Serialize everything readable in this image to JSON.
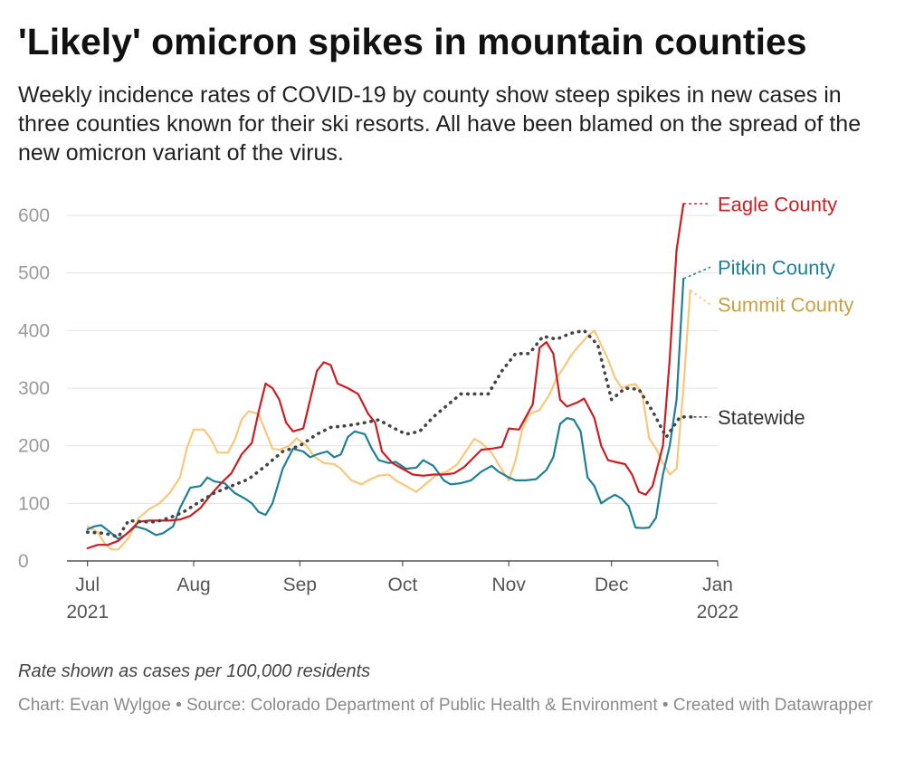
{
  "title": "'Likely' omicron spikes in mountain counties",
  "subtitle": "Weekly incidence rates of COVID-19 by county show steep spikes in new cases in three counties known for their ski resorts. All have been blamed on the spread of the new omicron variant of the virus.",
  "notes": "Rate shown as cases per 100,000 residents",
  "byline": "Chart: Evan Wylgoe • Source: Colorado Department of Public Health & Environment • Created with Datawrapper",
  "chart_data": {
    "type": "line",
    "title": "",
    "xlabel": "",
    "ylabel": "",
    "x_axis": {
      "min": "2021-06-25",
      "max": "2022-01-01",
      "ticks": [
        {
          "date": "2021-07-01",
          "label": "Jul",
          "year": "2021"
        },
        {
          "date": "2021-08-01",
          "label": "Aug",
          "year": ""
        },
        {
          "date": "2021-09-01",
          "label": "Sep",
          "year": ""
        },
        {
          "date": "2021-10-01",
          "label": "Oct",
          "year": ""
        },
        {
          "date": "2021-11-01",
          "label": "Nov",
          "year": ""
        },
        {
          "date": "2021-12-01",
          "label": "Dec",
          "year": ""
        },
        {
          "date": "2022-01-01",
          "label": "Jan",
          "year": "2022"
        }
      ]
    },
    "y_axis": {
      "min": 0,
      "max": 600,
      "ticks": [
        0,
        100,
        200,
        300,
        400,
        500,
        600
      ]
    },
    "grid": true,
    "series": [
      {
        "name": "Summit County",
        "color": "#f8c77a",
        "label_color": "#c9a044",
        "style": "solid",
        "label_value": 445,
        "points": [
          [
            "2021-07-01",
            60
          ],
          [
            "2021-07-04",
            50
          ],
          [
            "2021-07-06",
            30
          ],
          [
            "2021-07-08",
            20
          ],
          [
            "2021-07-10",
            20
          ],
          [
            "2021-07-13",
            40
          ],
          [
            "2021-07-16",
            75
          ],
          [
            "2021-07-19",
            90
          ],
          [
            "2021-07-22",
            100
          ],
          [
            "2021-07-25",
            118
          ],
          [
            "2021-07-28",
            145
          ],
          [
            "2021-07-30",
            195
          ],
          [
            "2021-08-01",
            228
          ],
          [
            "2021-08-04",
            228
          ],
          [
            "2021-08-06",
            212
          ],
          [
            "2021-08-08",
            188
          ],
          [
            "2021-08-11",
            188
          ],
          [
            "2021-08-13",
            210
          ],
          [
            "2021-08-15",
            245
          ],
          [
            "2021-08-17",
            260
          ],
          [
            "2021-08-20",
            255
          ],
          [
            "2021-08-22",
            225
          ],
          [
            "2021-08-24",
            195
          ],
          [
            "2021-08-26",
            193
          ],
          [
            "2021-08-29",
            200
          ],
          [
            "2021-08-31",
            213
          ],
          [
            "2021-09-03",
            200
          ],
          [
            "2021-09-05",
            182
          ],
          [
            "2021-09-08",
            170
          ],
          [
            "2021-09-11",
            168
          ],
          [
            "2021-09-13",
            160
          ],
          [
            "2021-09-16",
            140
          ],
          [
            "2021-09-19",
            133
          ],
          [
            "2021-09-21",
            140
          ],
          [
            "2021-09-24",
            148
          ],
          [
            "2021-09-27",
            150
          ],
          [
            "2021-09-29",
            140
          ],
          [
            "2021-10-02",
            130
          ],
          [
            "2021-10-05",
            120
          ],
          [
            "2021-10-08",
            135
          ],
          [
            "2021-10-11",
            150
          ],
          [
            "2021-10-14",
            155
          ],
          [
            "2021-10-17",
            168
          ],
          [
            "2021-10-20",
            195
          ],
          [
            "2021-10-22",
            212
          ],
          [
            "2021-10-24",
            205
          ],
          [
            "2021-10-27",
            188
          ],
          [
            "2021-10-29",
            168
          ],
          [
            "2021-11-01",
            140
          ],
          [
            "2021-11-03",
            175
          ],
          [
            "2021-11-05",
            230
          ],
          [
            "2021-11-07",
            255
          ],
          [
            "2021-11-10",
            262
          ],
          [
            "2021-11-13",
            290
          ],
          [
            "2021-11-15",
            318
          ],
          [
            "2021-11-17",
            335
          ],
          [
            "2021-11-19",
            355
          ],
          [
            "2021-11-21",
            370
          ],
          [
            "2021-11-24",
            390
          ],
          [
            "2021-11-26",
            400
          ],
          [
            "2021-11-28",
            375
          ],
          [
            "2021-11-30",
            350
          ],
          [
            "2021-12-02",
            318
          ],
          [
            "2021-12-04",
            300
          ],
          [
            "2021-12-06",
            305
          ],
          [
            "2021-12-08",
            307
          ],
          [
            "2021-12-10",
            290
          ],
          [
            "2021-12-12",
            213
          ],
          [
            "2021-12-14",
            195
          ],
          [
            "2021-12-16",
            170
          ],
          [
            "2021-12-18",
            150
          ],
          [
            "2021-12-20",
            160
          ],
          [
            "2021-12-22",
            300
          ],
          [
            "2021-12-24",
            470
          ]
        ]
      },
      {
        "name": "Pitkin County",
        "color": "#1f7f96",
        "label_color": "#1f7f96",
        "style": "solid",
        "label_value": 510,
        "points": [
          [
            "2021-07-01",
            55
          ],
          [
            "2021-07-03",
            60
          ],
          [
            "2021-07-05",
            62
          ],
          [
            "2021-07-08",
            48
          ],
          [
            "2021-07-10",
            38
          ],
          [
            "2021-07-12",
            45
          ],
          [
            "2021-07-15",
            60
          ],
          [
            "2021-07-18",
            55
          ],
          [
            "2021-07-21",
            45
          ],
          [
            "2021-07-23",
            48
          ],
          [
            "2021-07-26",
            60
          ],
          [
            "2021-07-28",
            92
          ],
          [
            "2021-07-31",
            127
          ],
          [
            "2021-08-03",
            130
          ],
          [
            "2021-08-05",
            145
          ],
          [
            "2021-08-07",
            138
          ],
          [
            "2021-08-10",
            135
          ],
          [
            "2021-08-13",
            118
          ],
          [
            "2021-08-16",
            108
          ],
          [
            "2021-08-18",
            100
          ],
          [
            "2021-08-20",
            85
          ],
          [
            "2021-08-22",
            80
          ],
          [
            "2021-08-24",
            100
          ],
          [
            "2021-08-27",
            160
          ],
          [
            "2021-08-30",
            195
          ],
          [
            "2021-09-02",
            190
          ],
          [
            "2021-09-04",
            180
          ],
          [
            "2021-09-06",
            185
          ],
          [
            "2021-09-09",
            190
          ],
          [
            "2021-09-11",
            180
          ],
          [
            "2021-09-13",
            185
          ],
          [
            "2021-09-15",
            215
          ],
          [
            "2021-09-17",
            225
          ],
          [
            "2021-09-20",
            220
          ],
          [
            "2021-09-22",
            195
          ],
          [
            "2021-09-24",
            175
          ],
          [
            "2021-09-27",
            170
          ],
          [
            "2021-09-29",
            172
          ],
          [
            "2021-10-02",
            160
          ],
          [
            "2021-10-05",
            162
          ],
          [
            "2021-10-07",
            175
          ],
          [
            "2021-10-10",
            165
          ],
          [
            "2021-10-13",
            140
          ],
          [
            "2021-10-15",
            133
          ],
          [
            "2021-10-18",
            135
          ],
          [
            "2021-10-21",
            140
          ],
          [
            "2021-10-24",
            155
          ],
          [
            "2021-10-27",
            165
          ],
          [
            "2021-10-29",
            155
          ],
          [
            "2021-11-01",
            145
          ],
          [
            "2021-11-03",
            140
          ],
          [
            "2021-11-06",
            140
          ],
          [
            "2021-11-09",
            142
          ],
          [
            "2021-11-12",
            158
          ],
          [
            "2021-11-14",
            180
          ],
          [
            "2021-11-16",
            238
          ],
          [
            "2021-11-18",
            248
          ],
          [
            "2021-11-20",
            245
          ],
          [
            "2021-11-22",
            225
          ],
          [
            "2021-11-24",
            145
          ],
          [
            "2021-11-26",
            130
          ],
          [
            "2021-11-28",
            100
          ],
          [
            "2021-11-30",
            108
          ],
          [
            "2021-12-02",
            115
          ],
          [
            "2021-12-04",
            108
          ],
          [
            "2021-12-06",
            95
          ],
          [
            "2021-12-08",
            58
          ],
          [
            "2021-12-10",
            57
          ],
          [
            "2021-12-12",
            58
          ],
          [
            "2021-12-14",
            75
          ],
          [
            "2021-12-16",
            150
          ],
          [
            "2021-12-18",
            200
          ],
          [
            "2021-12-20",
            280
          ],
          [
            "2021-12-22",
            490
          ]
        ]
      },
      {
        "name": "Eagle County",
        "color": "#c91f24",
        "label_color": "#c91f24",
        "style": "solid",
        "label_value": 620,
        "points": [
          [
            "2021-07-01",
            22
          ],
          [
            "2021-07-04",
            28
          ],
          [
            "2021-07-07",
            28
          ],
          [
            "2021-07-10",
            35
          ],
          [
            "2021-07-13",
            50
          ],
          [
            "2021-07-16",
            68
          ],
          [
            "2021-07-19",
            70
          ],
          [
            "2021-07-22",
            70
          ],
          [
            "2021-07-25",
            70
          ],
          [
            "2021-07-28",
            72
          ],
          [
            "2021-07-31",
            78
          ],
          [
            "2021-08-03",
            92
          ],
          [
            "2021-08-06",
            115
          ],
          [
            "2021-08-09",
            135
          ],
          [
            "2021-08-12",
            152
          ],
          [
            "2021-08-15",
            185
          ],
          [
            "2021-08-18",
            205
          ],
          [
            "2021-08-20",
            260
          ],
          [
            "2021-08-22",
            308
          ],
          [
            "2021-08-24",
            300
          ],
          [
            "2021-08-26",
            280
          ],
          [
            "2021-08-28",
            240
          ],
          [
            "2021-08-30",
            225
          ],
          [
            "2021-09-02",
            230
          ],
          [
            "2021-09-04",
            280
          ],
          [
            "2021-09-06",
            330
          ],
          [
            "2021-09-08",
            345
          ],
          [
            "2021-09-10",
            340
          ],
          [
            "2021-09-12",
            308
          ],
          [
            "2021-09-15",
            300
          ],
          [
            "2021-09-18",
            290
          ],
          [
            "2021-09-21",
            255
          ],
          [
            "2021-09-23",
            240
          ],
          [
            "2021-09-25",
            190
          ],
          [
            "2021-09-28",
            170
          ],
          [
            "2021-10-01",
            160
          ],
          [
            "2021-10-04",
            150
          ],
          [
            "2021-10-07",
            148
          ],
          [
            "2021-10-10",
            150
          ],
          [
            "2021-10-13",
            150
          ],
          [
            "2021-10-16",
            152
          ],
          [
            "2021-10-19",
            163
          ],
          [
            "2021-10-21",
            175
          ],
          [
            "2021-10-24",
            193
          ],
          [
            "2021-10-27",
            195
          ],
          [
            "2021-10-30",
            198
          ],
          [
            "2021-11-01",
            230
          ],
          [
            "2021-11-04",
            228
          ],
          [
            "2021-11-06",
            250
          ],
          [
            "2021-11-08",
            272
          ],
          [
            "2021-11-10",
            370
          ],
          [
            "2021-11-12",
            380
          ],
          [
            "2021-11-14",
            360
          ],
          [
            "2021-11-16",
            280
          ],
          [
            "2021-11-18",
            268
          ],
          [
            "2021-11-21",
            275
          ],
          [
            "2021-11-23",
            282
          ],
          [
            "2021-11-26",
            248
          ],
          [
            "2021-11-28",
            200
          ],
          [
            "2021-11-30",
            175
          ],
          [
            "2021-12-02",
            172
          ],
          [
            "2021-12-05",
            168
          ],
          [
            "2021-12-07",
            150
          ],
          [
            "2021-12-09",
            120
          ],
          [
            "2021-12-11",
            115
          ],
          [
            "2021-12-13",
            130
          ],
          [
            "2021-12-16",
            200
          ],
          [
            "2021-12-18",
            350
          ],
          [
            "2021-12-20",
            540
          ],
          [
            "2021-12-22",
            620
          ]
        ]
      },
      {
        "name": "Statewide",
        "color": "#444444",
        "label_color": "#333333",
        "style": "dotted",
        "label_value": 250,
        "points": [
          [
            "2021-07-01",
            50
          ],
          [
            "2021-07-06",
            48
          ],
          [
            "2021-07-10",
            42
          ],
          [
            "2021-07-13",
            70
          ],
          [
            "2021-07-17",
            68
          ],
          [
            "2021-07-21",
            68
          ],
          [
            "2021-07-25",
            75
          ],
          [
            "2021-07-29",
            85
          ],
          [
            "2021-08-02",
            100
          ],
          [
            "2021-08-07",
            118
          ],
          [
            "2021-08-12",
            130
          ],
          [
            "2021-08-17",
            142
          ],
          [
            "2021-08-22",
            165
          ],
          [
            "2021-08-27",
            190
          ],
          [
            "2021-09-01",
            200
          ],
          [
            "2021-09-06",
            220
          ],
          [
            "2021-09-10",
            232
          ],
          [
            "2021-09-15",
            235
          ],
          [
            "2021-09-20",
            240
          ],
          [
            "2021-09-24",
            245
          ],
          [
            "2021-09-28",
            232
          ],
          [
            "2021-10-02",
            220
          ],
          [
            "2021-10-06",
            225
          ],
          [
            "2021-10-10",
            250
          ],
          [
            "2021-10-14",
            270
          ],
          [
            "2021-10-18",
            290
          ],
          [
            "2021-10-22",
            290
          ],
          [
            "2021-10-26",
            290
          ],
          [
            "2021-10-30",
            330
          ],
          [
            "2021-11-03",
            360
          ],
          [
            "2021-11-07",
            360
          ],
          [
            "2021-11-11",
            390
          ],
          [
            "2021-11-15",
            385
          ],
          [
            "2021-11-19",
            395
          ],
          [
            "2021-11-23",
            400
          ],
          [
            "2021-11-27",
            375
          ],
          [
            "2021-12-01",
            280
          ],
          [
            "2021-12-05",
            300
          ],
          [
            "2021-12-09",
            298
          ],
          [
            "2021-12-13",
            260
          ],
          [
            "2021-12-17",
            215
          ],
          [
            "2021-12-21",
            250
          ],
          [
            "2021-12-25",
            250
          ]
        ]
      }
    ]
  }
}
